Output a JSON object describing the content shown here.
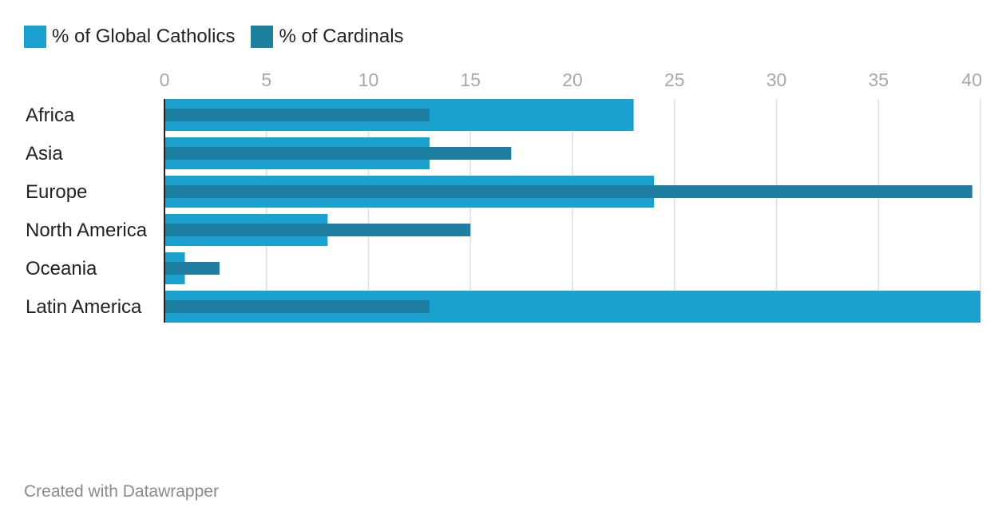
{
  "legend": [
    {
      "label": "% of Global Catholics",
      "color": "#1ba1cf"
    },
    {
      "label": "% of Cardinals",
      "color": "#1f7fa0"
    }
  ],
  "chart_data": {
    "type": "bar",
    "orientation": "horizontal",
    "title": "",
    "xlabel": "",
    "ylabel": "",
    "xlim": [
      0,
      40
    ],
    "ticks": [
      0,
      5,
      10,
      15,
      20,
      25,
      30,
      35,
      40
    ],
    "grid": true,
    "legend_position": "top-left",
    "categories": [
      "Africa",
      "Asia",
      "Europe",
      "North America",
      "Oceania",
      "Latin America"
    ],
    "series": [
      {
        "name": "% of Global Catholics",
        "color": "#1ba1cf",
        "values": [
          23,
          13,
          24,
          8,
          1,
          41
        ]
      },
      {
        "name": "% of Cardinals",
        "color": "#1f7fa0",
        "values": [
          13,
          17,
          39.6,
          15,
          2.7,
          13
        ]
      }
    ]
  },
  "footer": {
    "credit": "Created with Datawrapper"
  }
}
